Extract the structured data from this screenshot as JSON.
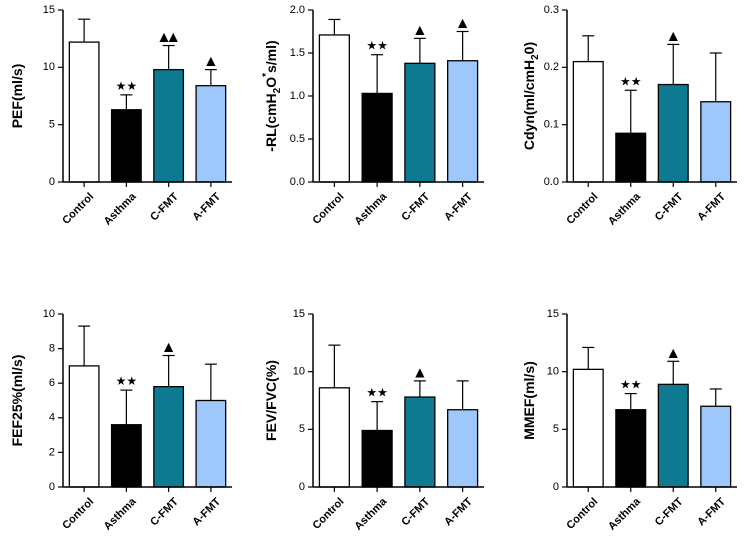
{
  "colors": {
    "Control": "#ffffff",
    "Asthma": "#000000",
    "C-FMT": "#0e7a91",
    "A-FMT": "#9ec8fb",
    "axis": "#000000"
  },
  "chart_data": [
    {
      "type": "bar",
      "ylabel": "PEF(ml/s)",
      "ylabel_parts": [
        {
          "t": "PEF(ml/s)",
          "s": ""
        }
      ],
      "categories": [
        "Control",
        "Asthma",
        "C-FMT",
        "A-FMT"
      ],
      "values": [
        12.2,
        6.3,
        9.8,
        8.4
      ],
      "errors": [
        2.0,
        1.3,
        2.1,
        1.4
      ],
      "annotations": [
        "",
        "★★",
        "▲▲",
        "▲"
      ],
      "ylim": [
        0,
        15
      ],
      "yticks": [
        0,
        5,
        10,
        15
      ]
    },
    {
      "type": "bar",
      "ylabel": "-RL(cmH2O*s/ml)",
      "ylabel_parts": [
        {
          "t": "-RL(cmH",
          "s": ""
        },
        {
          "t": "2",
          "s": "sub"
        },
        {
          "t": "O",
          "s": ""
        },
        {
          "t": "*",
          "s": "sup"
        },
        {
          "t": "s/ml)",
          "s": ""
        }
      ],
      "categories": [
        "Control",
        "Asthma",
        "C-FMT",
        "A-FMT"
      ],
      "values": [
        1.71,
        1.03,
        1.38,
        1.41
      ],
      "errors": [
        0.18,
        0.45,
        0.29,
        0.34
      ],
      "annotations": [
        "",
        "★★",
        "▲",
        "▲"
      ],
      "ylim": [
        0,
        2.0
      ],
      "yticks": [
        "0.0",
        "0.5",
        "1.0",
        "1.5",
        "2.0"
      ]
    },
    {
      "type": "bar",
      "ylabel": "Cdyn(ml/cmH20)",
      "ylabel_parts": [
        {
          "t": "Cdyn(ml/cmH",
          "s": ""
        },
        {
          "t": "2",
          "s": "sub"
        },
        {
          "t": "0)",
          "s": ""
        }
      ],
      "categories": [
        "Control",
        "Asthma",
        "C-FMT",
        "A-FMT"
      ],
      "values": [
        0.21,
        0.085,
        0.17,
        0.14
      ],
      "errors": [
        0.045,
        0.075,
        0.07,
        0.085
      ],
      "annotations": [
        "",
        "★★",
        "▲",
        ""
      ],
      "ylim": [
        0,
        0.3
      ],
      "yticks": [
        "0.0",
        "0.1",
        "0.2",
        "0.3"
      ]
    },
    {
      "type": "bar",
      "ylabel": "FEF25%(ml/s)",
      "ylabel_parts": [
        {
          "t": "FEF25%(ml/s)",
          "s": ""
        }
      ],
      "categories": [
        "Control",
        "Asthma",
        "C-FMT",
        "A-FMT"
      ],
      "values": [
        7.0,
        3.6,
        5.8,
        5.0
      ],
      "errors": [
        2.3,
        2.0,
        1.8,
        2.1
      ],
      "annotations": [
        "",
        "★★",
        "▲",
        ""
      ],
      "ylim": [
        0,
        10
      ],
      "yticks": [
        0,
        2,
        4,
        6,
        8,
        10
      ]
    },
    {
      "type": "bar",
      "ylabel": "FEV/FVC(%)",
      "ylabel_parts": [
        {
          "t": "FEV/FVC(%)",
          "s": ""
        }
      ],
      "categories": [
        "Control",
        "Asthma",
        "C-FMT",
        "A-FMT"
      ],
      "values": [
        8.6,
        4.9,
        7.8,
        6.7
      ],
      "errors": [
        3.7,
        2.5,
        1.4,
        2.5
      ],
      "annotations": [
        "",
        "★★",
        "▲",
        ""
      ],
      "ylim": [
        0,
        15
      ],
      "yticks": [
        0,
        5,
        10,
        15
      ]
    },
    {
      "type": "bar",
      "ylabel": "MMEF(ml/s)",
      "ylabel_parts": [
        {
          "t": "MMEF(ml/s)",
          "s": ""
        }
      ],
      "categories": [
        "Control",
        "Asthma",
        "C-FMT",
        "A-FMT"
      ],
      "values": [
        10.2,
        6.7,
        8.9,
        7.0
      ],
      "errors": [
        1.9,
        1.4,
        2.0,
        1.5
      ],
      "annotations": [
        "",
        "★★",
        "▲",
        ""
      ],
      "ylim": [
        0,
        15
      ],
      "yticks": [
        0,
        5,
        10,
        15
      ]
    }
  ]
}
